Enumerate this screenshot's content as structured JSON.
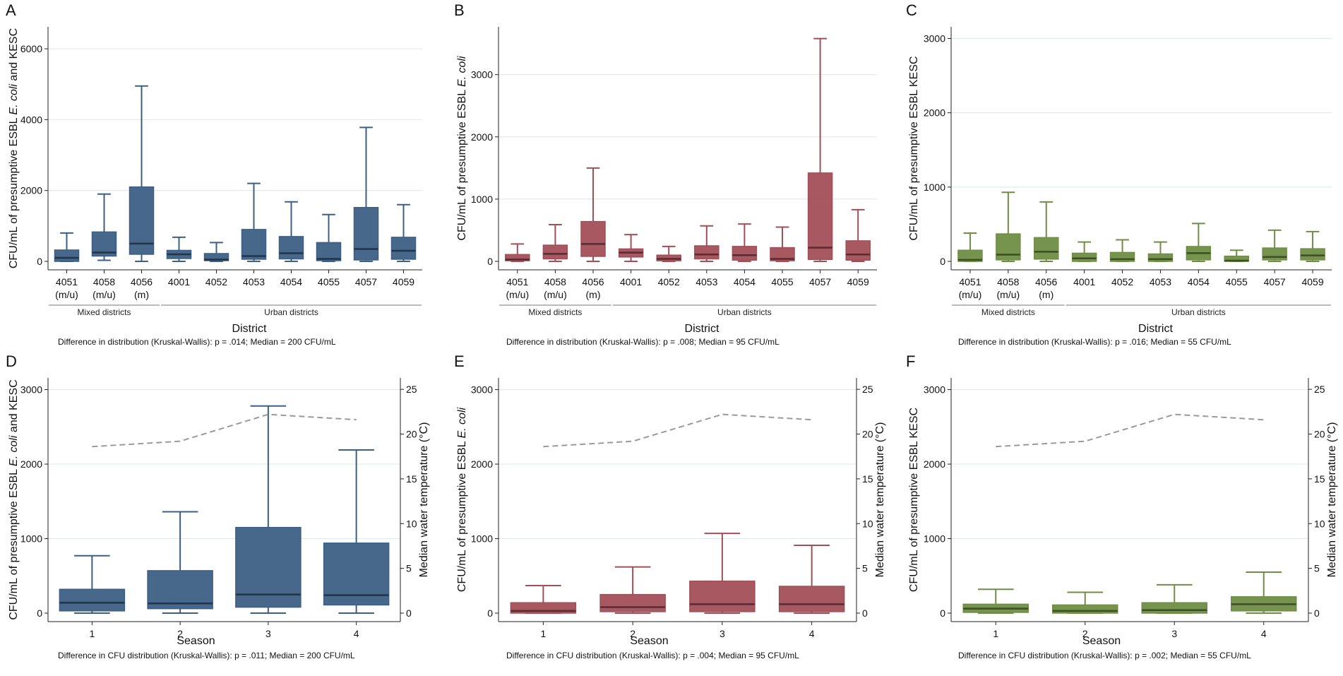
{
  "colors": {
    "A": "#3d5f85",
    "B": "#a24f57",
    "C": "#6f8e45",
    "temp_line": "#9a9a9a",
    "grid": "#dce8ea"
  },
  "chart_data": [
    {
      "id": "A",
      "type": "box",
      "letter": "A",
      "ylabel_parts": [
        "CFU/mL of presumptive ESBL ",
        "E. coli",
        " and KESC"
      ],
      "ylim": [
        0,
        6500
      ],
      "yticks": [
        0,
        2000,
        4000,
        6000
      ],
      "xlabel": "District",
      "categories": [
        [
          "4051",
          "(m/u)"
        ],
        [
          "4058",
          "(m/u)"
        ],
        [
          "4056",
          "(m)"
        ],
        [
          "4001"
        ],
        [
          "4052"
        ],
        [
          "4053"
        ],
        [
          "4054"
        ],
        [
          "4055"
        ],
        [
          "4057"
        ],
        [
          "4059"
        ]
      ],
      "groups": [
        {
          "label": "Mixed districts",
          "from": 0,
          "to": 2
        },
        {
          "label": "Urban districts",
          "from": 3,
          "to": 9
        }
      ],
      "boxes": [
        {
          "min": 0,
          "q1": 0,
          "median": 100,
          "q3": 320,
          "max": 800
        },
        {
          "min": 30,
          "q1": 150,
          "median": 250,
          "q3": 830,
          "max": 1900
        },
        {
          "min": 0,
          "q1": 200,
          "median": 500,
          "q3": 2100,
          "max": 4950
        },
        {
          "min": 0,
          "q1": 80,
          "median": 200,
          "q3": 310,
          "max": 680
        },
        {
          "min": 0,
          "q1": 20,
          "median": 50,
          "q3": 220,
          "max": 530
        },
        {
          "min": 0,
          "q1": 60,
          "median": 150,
          "q3": 900,
          "max": 2200
        },
        {
          "min": 0,
          "q1": 70,
          "median": 230,
          "q3": 700,
          "max": 1680
        },
        {
          "min": 0,
          "q1": 20,
          "median": 70,
          "q3": 530,
          "max": 1320
        },
        {
          "min": 0,
          "q1": 40,
          "median": 350,
          "q3": 1520,
          "max": 3780
        },
        {
          "min": 0,
          "q1": 60,
          "median": 300,
          "q3": 680,
          "max": 1600
        }
      ],
      "footnote": "Difference in distribution (Kruskal-Wallis): p = .014; Median = 200 CFU/mL"
    },
    {
      "id": "B",
      "type": "box",
      "letter": "B",
      "ylabel_parts": [
        "CFU/mL of presumptive ESBL ",
        "E. coli",
        ""
      ],
      "ylim": [
        0,
        3700
      ],
      "yticks": [
        0,
        1000,
        2000,
        3000
      ],
      "xlabel": "District",
      "categories": [
        [
          "4051",
          "(m/u)"
        ],
        [
          "4058",
          "(m/u)"
        ],
        [
          "4056",
          "(m)"
        ],
        [
          "4001"
        ],
        [
          "4052"
        ],
        [
          "4053"
        ],
        [
          "4054"
        ],
        [
          "4055"
        ],
        [
          "4057"
        ],
        [
          "4059"
        ]
      ],
      "groups": [
        {
          "label": "Mixed districts",
          "from": 0,
          "to": 2
        },
        {
          "label": "Urban districts",
          "from": 3,
          "to": 9
        }
      ],
      "boxes": [
        {
          "min": 0,
          "q1": 10,
          "median": 30,
          "q3": 110,
          "max": 280
        },
        {
          "min": 0,
          "q1": 40,
          "median": 120,
          "q3": 260,
          "max": 590
        },
        {
          "min": 0,
          "q1": 80,
          "median": 280,
          "q3": 640,
          "max": 1500
        },
        {
          "min": 0,
          "q1": 70,
          "median": 140,
          "q3": 200,
          "max": 430
        },
        {
          "min": 0,
          "q1": 10,
          "median": 40,
          "q3": 100,
          "max": 240
        },
        {
          "min": 0,
          "q1": 40,
          "median": 110,
          "q3": 250,
          "max": 570
        },
        {
          "min": 0,
          "q1": 20,
          "median": 100,
          "q3": 240,
          "max": 600
        },
        {
          "min": 0,
          "q1": 10,
          "median": 40,
          "q3": 220,
          "max": 550
        },
        {
          "min": 0,
          "q1": 30,
          "median": 220,
          "q3": 1420,
          "max": 3580
        },
        {
          "min": 0,
          "q1": 20,
          "median": 110,
          "q3": 330,
          "max": 830
        }
      ],
      "footnote": "Difference in distribution (Kruskal-Wallis): p = .008; Median = 95 CFU/mL"
    },
    {
      "id": "C",
      "type": "box",
      "letter": "C",
      "ylabel_parts": [
        "CFU/mL of presumptive ESBL KESC",
        "",
        ""
      ],
      "ylim": [
        0,
        3100
      ],
      "yticks": [
        0,
        1000,
        2000,
        3000
      ],
      "xlabel": "District",
      "categories": [
        [
          "4051",
          "(m/u)"
        ],
        [
          "4058",
          "(m/u)"
        ],
        [
          "4056",
          "(m)"
        ],
        [
          "4001"
        ],
        [
          "4052"
        ],
        [
          "4053"
        ],
        [
          "4054"
        ],
        [
          "4055"
        ],
        [
          "4057"
        ],
        [
          "4059"
        ]
      ],
      "groups": [
        {
          "label": "Mixed districts",
          "from": 0,
          "to": 2
        },
        {
          "label": "Urban districts",
          "from": 3,
          "to": 9
        }
      ],
      "boxes": [
        {
          "min": 0,
          "q1": 0,
          "median": 20,
          "q3": 150,
          "max": 380
        },
        {
          "min": 0,
          "q1": 20,
          "median": 90,
          "q3": 370,
          "max": 930
        },
        {
          "min": 0,
          "q1": 30,
          "median": 130,
          "q3": 320,
          "max": 800
        },
        {
          "min": 0,
          "q1": 0,
          "median": 40,
          "q3": 110,
          "max": 260
        },
        {
          "min": 0,
          "q1": 0,
          "median": 30,
          "q3": 120,
          "max": 290
        },
        {
          "min": 0,
          "q1": 0,
          "median": 30,
          "q3": 100,
          "max": 260
        },
        {
          "min": 0,
          "q1": 20,
          "median": 110,
          "q3": 200,
          "max": 510
        },
        {
          "min": 0,
          "q1": 0,
          "median": 10,
          "q3": 70,
          "max": 150
        },
        {
          "min": 0,
          "q1": 20,
          "median": 60,
          "q3": 180,
          "max": 420
        },
        {
          "min": 0,
          "q1": 20,
          "median": 80,
          "q3": 170,
          "max": 400
        }
      ],
      "footnote": "Difference in distribution (Kruskal-Wallis): p = .016; Median = 55 CFU/mL"
    },
    {
      "id": "D",
      "type": "box+line",
      "letter": "D",
      "ylabel_parts": [
        "CFU/mL of presumptive ESBL ",
        "E. coli",
        " and KESC"
      ],
      "ylim": [
        0,
        3100
      ],
      "yticks": [
        0,
        1000,
        2000,
        3000
      ],
      "y2label": "Median water temperature (°C)",
      "y2lim": [
        0,
        25.8
      ],
      "y2ticks": [
        0,
        5,
        10,
        15,
        20,
        25
      ],
      "xlabel": "Season",
      "categories": [
        [
          "1"
        ],
        [
          "2"
        ],
        [
          "3"
        ],
        [
          "4"
        ]
      ],
      "boxes": [
        {
          "min": 0,
          "q1": 30,
          "median": 140,
          "q3": 320,
          "max": 770
        },
        {
          "min": 0,
          "q1": 60,
          "median": 130,
          "q3": 570,
          "max": 1360
        },
        {
          "min": 0,
          "q1": 80,
          "median": 250,
          "q3": 1150,
          "max": 2780
        },
        {
          "min": 0,
          "q1": 110,
          "median": 240,
          "q3": 940,
          "max": 2190
        }
      ],
      "temperature": [
        18.6,
        19.2,
        22.2,
        21.6
      ],
      "footnote": "Difference in CFU distribution (Kruskal-Wallis): p = .011; Median = 200 CFU/mL"
    },
    {
      "id": "E",
      "type": "box+line",
      "letter": "E",
      "ylabel_parts": [
        "CFU/mL of presumptive ESBL ",
        "E. coli",
        ""
      ],
      "ylim": [
        0,
        3100
      ],
      "yticks": [
        0,
        1000,
        2000,
        3000
      ],
      "y2label": "Median water temperature (°C)",
      "y2lim": [
        0,
        25.8
      ],
      "y2ticks": [
        0,
        5,
        10,
        15,
        20,
        25
      ],
      "xlabel": "Season",
      "categories": [
        [
          "1"
        ],
        [
          "2"
        ],
        [
          "3"
        ],
        [
          "4"
        ]
      ],
      "boxes": [
        {
          "min": 0,
          "q1": 0,
          "median": 30,
          "q3": 140,
          "max": 370
        },
        {
          "min": 0,
          "q1": 20,
          "median": 80,
          "q3": 250,
          "max": 620
        },
        {
          "min": 0,
          "q1": 20,
          "median": 120,
          "q3": 430,
          "max": 1070
        },
        {
          "min": 0,
          "q1": 20,
          "median": 120,
          "q3": 360,
          "max": 910
        }
      ],
      "temperature": [
        18.6,
        19.2,
        22.2,
        21.6
      ],
      "footnote": "Difference in CFU distribution (Kruskal-Wallis): p = .004; Median = 95 CFU/mL"
    },
    {
      "id": "F",
      "type": "box+line",
      "letter": "F",
      "ylabel_parts": [
        "CFU/mL of presumptive ESBL KESC",
        "",
        ""
      ],
      "ylim": [
        0,
        3100
      ],
      "yticks": [
        0,
        1000,
        2000,
        3000
      ],
      "y2label": "Median water temperature (°C)",
      "y2lim": [
        0,
        25.8
      ],
      "y2ticks": [
        0,
        5,
        10,
        15,
        20,
        25
      ],
      "xlabel": "Season",
      "categories": [
        [
          "1"
        ],
        [
          "2"
        ],
        [
          "3"
        ],
        [
          "4"
        ]
      ],
      "boxes": [
        {
          "min": 0,
          "q1": 10,
          "median": 60,
          "q3": 120,
          "max": 320
        },
        {
          "min": 0,
          "q1": 0,
          "median": 30,
          "q3": 110,
          "max": 280
        },
        {
          "min": 0,
          "q1": 0,
          "median": 40,
          "q3": 140,
          "max": 380
        },
        {
          "min": 0,
          "q1": 30,
          "median": 120,
          "q3": 220,
          "max": 550
        }
      ],
      "temperature": [
        18.6,
        19.2,
        22.2,
        21.6
      ],
      "footnote": "Difference in CFU distribution (Kruskal-Wallis): p = .002; Median = 55 CFU/mL"
    }
  ]
}
